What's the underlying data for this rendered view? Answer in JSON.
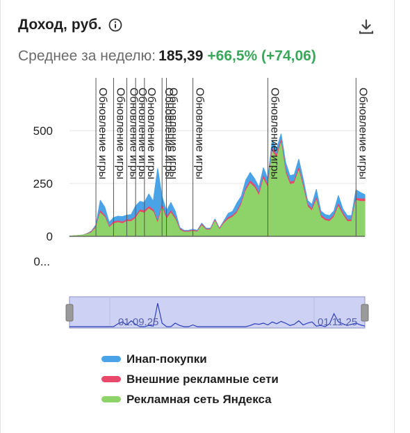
{
  "widget": {
    "title": "Доход, руб.",
    "summary_label": "Среднее за неделю:",
    "summary_value": "185,39",
    "summary_change": "+66,5% (+74,06)"
  },
  "colors": {
    "inapp": "#4aa3e6",
    "external": "#e8486a",
    "yandex": "#8ed26a",
    "navigator_fill": "#cdd2f5",
    "navigator_line": "#2a3fb8",
    "change_positive": "#3aa65a"
  },
  "icons": {
    "info": "info-circle-icon",
    "download": "download-icon"
  },
  "chart_data": {
    "type": "area",
    "stacked": true,
    "y_ticks": [
      "500",
      "250",
      "0",
      "0..."
    ],
    "ylim": [
      0,
      750
    ],
    "grid": true,
    "legend_position": "bottom",
    "series": [
      {
        "name": "Рекламная сеть Яндекса",
        "color": "#8ed26a",
        "values": [
          0,
          2,
          4,
          6,
          10,
          18,
          40,
          110,
          90,
          40,
          60,
          65,
          60,
          70,
          70,
          85,
          115,
          110,
          130,
          115,
          60,
          135,
          80,
          110,
          80,
          30,
          20,
          20,
          25,
          20,
          50,
          30,
          30,
          70,
          30,
          60,
          80,
          90,
          110,
          150,
          215,
          250,
          230,
          190,
          270,
          230,
          400,
          370,
          440,
          300,
          245,
          250,
          310,
          230,
          140,
          120,
          170,
          90,
          75,
          70,
          90,
          140,
          100,
          70,
          70,
          170,
          165,
          165
        ]
      },
      {
        "name": "Внешние рекламные сети",
        "color": "#e8486a",
        "values": [
          0,
          0,
          0,
          0,
          2,
          4,
          6,
          10,
          8,
          6,
          8,
          8,
          8,
          8,
          8,
          8,
          10,
          10,
          10,
          10,
          10,
          12,
          10,
          10,
          8,
          6,
          4,
          4,
          4,
          4,
          6,
          4,
          4,
          6,
          4,
          6,
          8,
          8,
          8,
          10,
          10,
          12,
          12,
          12,
          14,
          12,
          14,
          14,
          14,
          12,
          12,
          12,
          14,
          12,
          10,
          10,
          12,
          10,
          8,
          8,
          10,
          12,
          10,
          8,
          8,
          10,
          12,
          12
        ]
      },
      {
        "name": "Инап-покупки",
        "color": "#4aa3e6",
        "values": [
          0,
          0,
          0,
          0,
          1,
          3,
          8,
          50,
          40,
          20,
          20,
          22,
          25,
          22,
          25,
          50,
          40,
          40,
          60,
          40,
          250,
          40,
          30,
          40,
          30,
          6,
          4,
          4,
          4,
          4,
          6,
          4,
          4,
          6,
          4,
          6,
          20,
          20,
          40,
          30,
          40,
          40,
          30,
          30,
          40,
          30,
          40,
          30,
          30,
          40,
          30,
          30,
          40,
          30,
          20,
          20,
          40,
          20,
          20,
          20,
          20,
          40,
          20,
          20,
          20,
          40,
          30,
          20
        ]
      }
    ],
    "annotations": [
      {
        "label": "Обновление игры",
        "at": 6
      },
      {
        "label": "Обновление игры",
        "at": 10
      },
      {
        "label": "Обновление игры",
        "at": 13
      },
      {
        "label": "Обновление игры",
        "at": 15
      },
      {
        "label": "Обновление игры",
        "at": 17
      },
      {
        "label": "Обновление игры",
        "at": 21
      },
      {
        "label": "Обновление игры",
        "at": 22
      },
      {
        "label": "Обновление игры",
        "at": 28
      },
      {
        "label": "Обновление игры",
        "at": 45
      },
      {
        "label": "Обновление игры",
        "at": 65
      }
    ],
    "navigator": {
      "labels": [
        "01.09.25",
        "01.11.25"
      ],
      "values": [
        0,
        0,
        0,
        0,
        0,
        0,
        0,
        0,
        0,
        0,
        0,
        5,
        8,
        3,
        10,
        4,
        0,
        0,
        2,
        1,
        40,
        6,
        0,
        0,
        6,
        2,
        0,
        0,
        3,
        0,
        0,
        0,
        0,
        0,
        0,
        0,
        0,
        0,
        0,
        0,
        0,
        2,
        5,
        4,
        6,
        3,
        8,
        5,
        9,
        6,
        2,
        4,
        10,
        3,
        6,
        8,
        1,
        2,
        0,
        5,
        22,
        8,
        5,
        2,
        4,
        6,
        3,
        1
      ]
    },
    "legend": [
      {
        "label": "Инап-покупки",
        "color": "#4aa3e6"
      },
      {
        "label": "Внешние рекламные сети",
        "color": "#e8486a"
      },
      {
        "label": "Рекламная сеть Яндекса",
        "color": "#8ed26a"
      }
    ]
  }
}
